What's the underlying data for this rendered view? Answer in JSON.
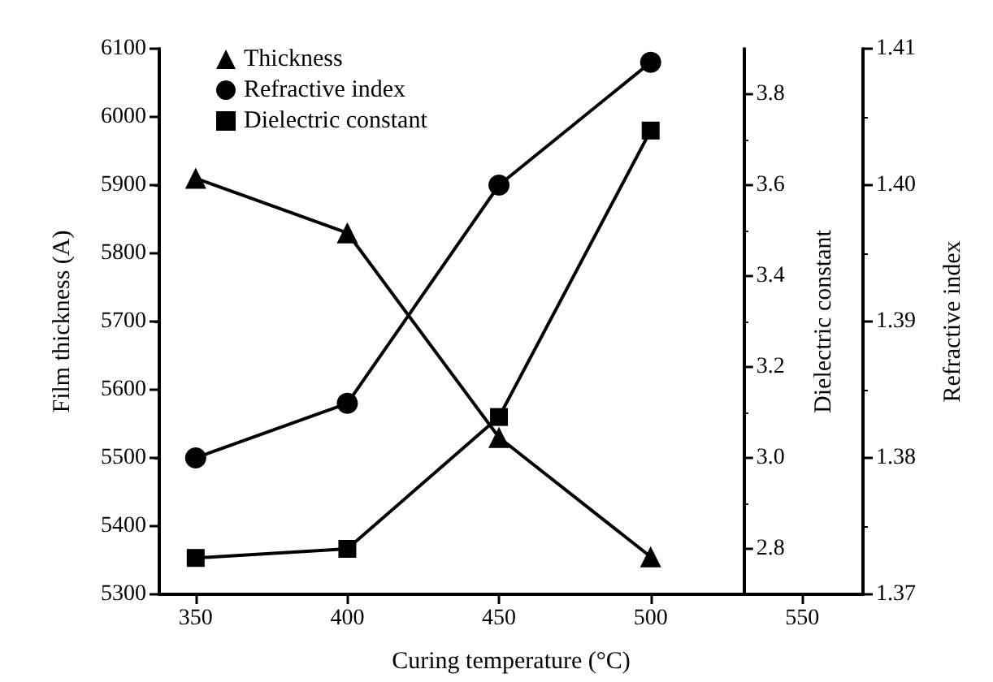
{
  "chart_data": {
    "type": "line",
    "xlabel": "Curing temperature (°C)",
    "ylabel": "Film thickness (A)",
    "y2label": "Dielectric constant",
    "y3label": "Refractive index",
    "x": [
      350,
      400,
      450,
      500
    ],
    "xlim": [
      338,
      570
    ],
    "xticks": [
      350,
      400,
      450,
      500,
      550
    ],
    "ylim": [
      5300,
      6100
    ],
    "yticks": [
      5300,
      5400,
      5500,
      5600,
      5700,
      5800,
      5900,
      6000,
      6100
    ],
    "y2lim": [
      2.7,
      3.9
    ],
    "y2ticks": [
      {
        "value": 2.8,
        "label": "2.8"
      },
      {
        "value": 3,
        "label": "3.0"
      },
      {
        "value": 3.2,
        "label": "3.2"
      },
      {
        "value": 3.4,
        "label": "3.4"
      },
      {
        "value": 3.6,
        "label": "3.6"
      },
      {
        "value": 3.8,
        "label": "3.8"
      }
    ],
    "y3lim": [
      1.37,
      1.41
    ],
    "y3ticks": [
      {
        "value": 1.37,
        "label": "1.37"
      },
      {
        "value": 1.38,
        "label": "1.38"
      },
      {
        "value": 1.39,
        "label": "1.39"
      },
      {
        "value": 1.4,
        "label": "1.40"
      },
      {
        "value": 1.41,
        "label": "1.41"
      }
    ],
    "legend": "top left",
    "grid": false,
    "line_style": "solid",
    "series": [
      {
        "name": "Thickness",
        "color": "#000000",
        "marker": "triangle",
        "values": [
          5910,
          5830,
          5530,
          5355
        ]
      },
      {
        "name": "Refractive index",
        "color": "#000000",
        "marker": "circle",
        "axis": "y3",
        "values": [
          1.38,
          1.384,
          1.4,
          1.409
        ]
      },
      {
        "name": "Dielectric constant",
        "color": "#000000",
        "marker": "square",
        "axis": "y2",
        "values": [
          2.78,
          2.8,
          3.09,
          3.72
        ]
      }
    ]
  }
}
